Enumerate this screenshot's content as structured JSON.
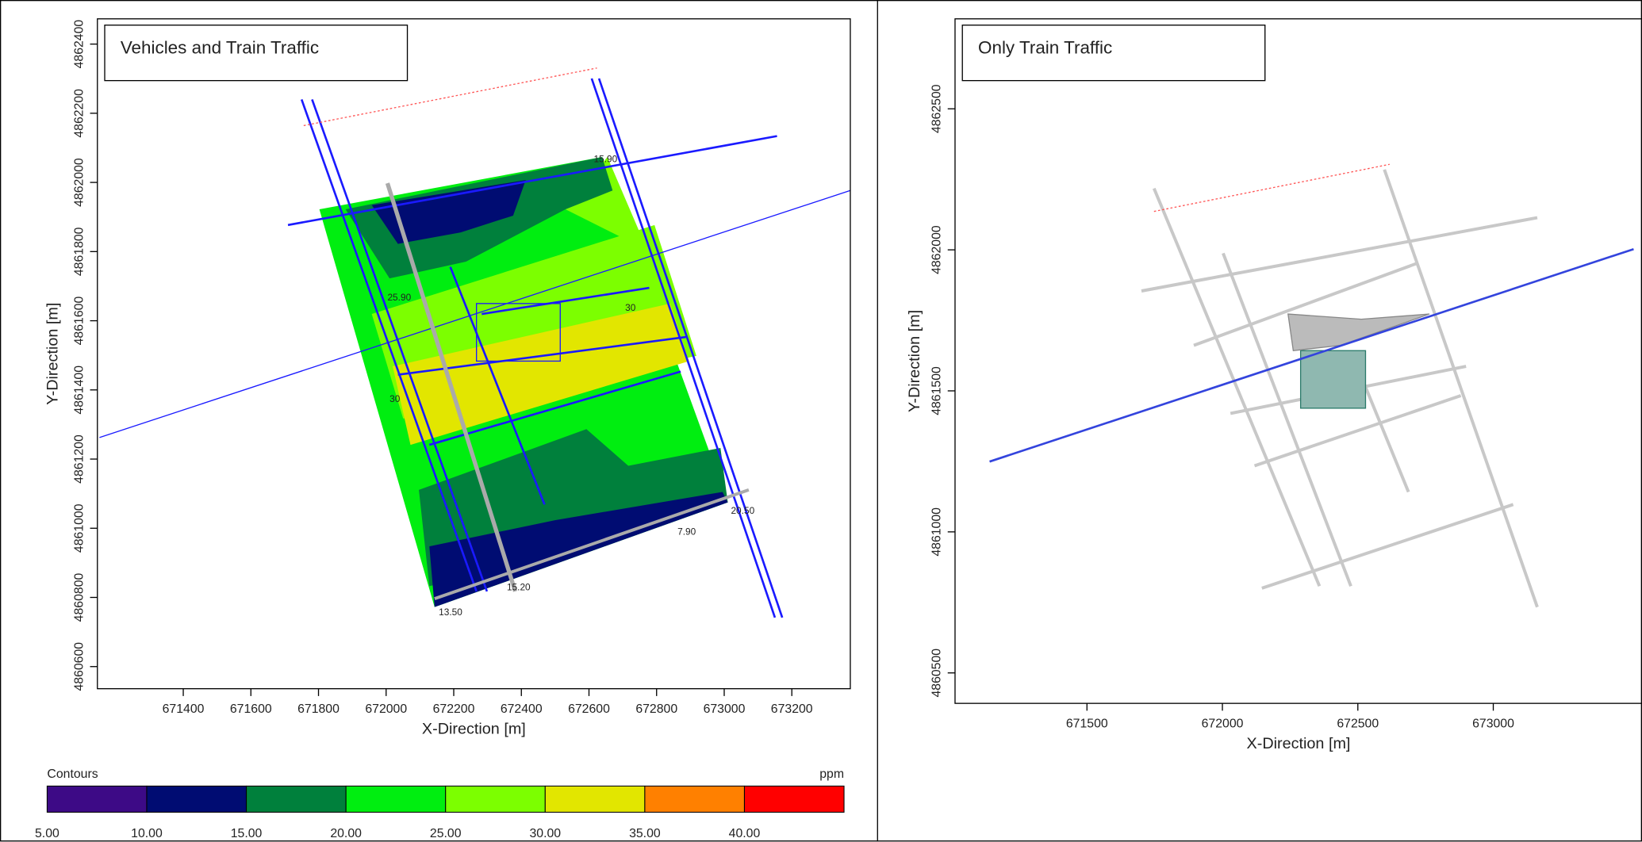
{
  "chart_data": [
    {
      "type": "contour",
      "title": "Vehicles and Train Traffic",
      "xlabel": "X-Direction [m]",
      "ylabel": "Y-Direction [m]",
      "xlim": [
        671146,
        673373
      ],
      "xticks": [
        671400,
        671600,
        671800,
        672000,
        672200,
        672400,
        672600,
        672800,
        673000,
        673200
      ],
      "ylim": [
        4860536,
        4862473
      ],
      "yticks": [
        4860600,
        4860800,
        4861000,
        4861200,
        4861400,
        4861600,
        4861800,
        4862000,
        4862200,
        4862400
      ],
      "annotations": [
        "15.90",
        "25.90",
        "20.50",
        "7.90",
        "15.20",
        "13.50",
        "30",
        "30"
      ],
      "colorbar": {
        "title": "Contours",
        "unit": "ppm",
        "levels": [
          {
            "value": 5,
            "label": "5.00"
          },
          {
            "value": 10,
            "label": "10.00"
          },
          {
            "value": 15,
            "label": "15.00"
          },
          {
            "value": 20,
            "label": "20.00"
          },
          {
            "value": 25,
            "label": "25.00"
          },
          {
            "value": 30,
            "label": "30.00"
          },
          {
            "value": 35,
            "label": "35.00"
          },
          {
            "value": 40,
            "label": "40.00"
          }
        ],
        "colors": [
          "#3d0a86",
          "#000c72",
          "#00803c",
          "#00ee10",
          "#7cff00",
          "#e2e600",
          "#ff8000",
          "#ff0000"
        ]
      }
    },
    {
      "type": "contour",
      "title": "Only Train Traffic",
      "xlabel": "X-Direction [m]",
      "ylabel": "Y-Direction [m]",
      "xlim": [
        671013,
        673549
      ],
      "xticks": [
        671500,
        672000,
        672500,
        673000
      ],
      "ylim": [
        4860392,
        4862819
      ],
      "yticks": [
        4860500,
        4861000,
        4861500,
        4862000,
        4862500
      ]
    }
  ]
}
